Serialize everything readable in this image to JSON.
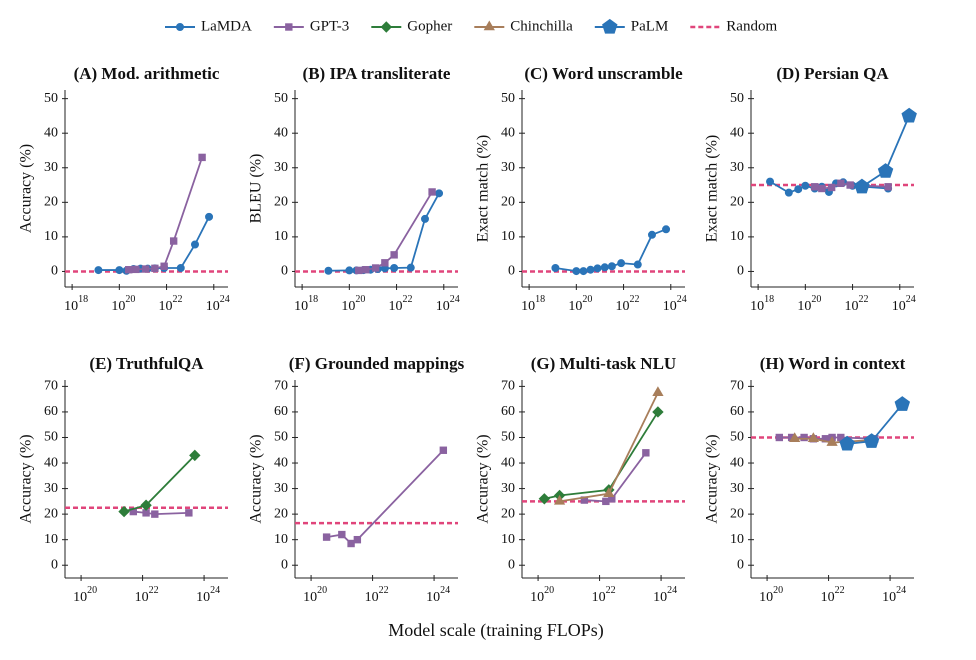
{
  "legend": [
    {
      "name": "LaMDA",
      "color": "#2a74b8",
      "marker": "circle"
    },
    {
      "name": "GPT-3",
      "color": "#8a62a0",
      "marker": "square"
    },
    {
      "name": "Gopher",
      "color": "#2e7d3a",
      "marker": "diamond"
    },
    {
      "name": "Chinchilla",
      "color": "#a87e5b",
      "marker": "triangle"
    },
    {
      "name": "PaLM",
      "color": "#2a74b8",
      "marker": "pentagon"
    },
    {
      "name": "Random",
      "color": "#e0457b",
      "marker": "dashed"
    }
  ],
  "xlabel": "Model scale (training FLOPs)",
  "chart_data": [
    {
      "type": "line",
      "title": "(A) Mod. arithmetic",
      "ylabel": "Accuracy (%)",
      "xscale": "log",
      "xlim": [
        5e+17,
        4e+24
      ],
      "xticks": [
        {
          "value": 1e+18,
          "label": "10^18"
        },
        {
          "value": 1e+20,
          "label": "10^20"
        },
        {
          "value": 1e+22,
          "label": "10^22"
        },
        {
          "value": 1e+24,
          "label": "10^24"
        }
      ],
      "ylim": [
        -4.5,
        52.5
      ],
      "yticks": [
        0,
        10,
        20,
        30,
        40,
        50
      ],
      "random": 0,
      "series": [
        {
          "name": "LaMDA",
          "x": [
            1.3e+19,
            1e+20,
            2e+20,
            4e+20,
            7.9e+20,
            1.6e+21,
            3.2e+21,
            7.9e+21,
            4e+22,
            1.6e+23,
            6.3e+23
          ],
          "values": [
            0.4,
            0.4,
            0.2,
            0.7,
            0.8,
            0.8,
            0.9,
            1.0,
            1.0,
            7.8,
            15.8
          ]
        },
        {
          "name": "GPT-3",
          "x": [
            2.5e+20,
            5e+20,
            1.3e+21,
            3.2e+21,
            7.9e+21,
            2e+22,
            3.2e+23
          ],
          "values": [
            0.5,
            0.6,
            0.7,
            0.9,
            1.5,
            8.8,
            33.0
          ]
        }
      ]
    },
    {
      "type": "line",
      "title": "(B) IPA transliterate",
      "ylabel": "BLEU (%)",
      "xscale": "log",
      "xlim": [
        5e+17,
        4e+24
      ],
      "xticks": [
        {
          "value": 1e+18,
          "label": "10^18"
        },
        {
          "value": 1e+20,
          "label": "10^20"
        },
        {
          "value": 1e+22,
          "label": "10^22"
        },
        {
          "value": 1e+24,
          "label": "10^24"
        }
      ],
      "ylim": [
        -4.5,
        52.5
      ],
      "yticks": [
        0,
        10,
        20,
        30,
        40,
        50
      ],
      "random": 0,
      "series": [
        {
          "name": "LaMDA",
          "x": [
            1.3e+19,
            1e+20,
            2e+20,
            4e+20,
            7.9e+20,
            1.6e+21,
            3.2e+21,
            7.9e+21,
            4e+22,
            1.6e+23,
            6.3e+23
          ],
          "values": [
            0.2,
            0.3,
            0.3,
            0.4,
            0.5,
            0.7,
            0.9,
            1.0,
            1.1,
            15.2,
            22.6
          ]
        },
        {
          "name": "GPT-3",
          "x": [
            2.5e+20,
            5e+20,
            1.3e+21,
            3.2e+21,
            7.9e+21,
            3.2e+23
          ],
          "values": [
            0.3,
            0.5,
            1.0,
            2.5,
            4.8,
            23.0
          ]
        }
      ]
    },
    {
      "type": "line",
      "title": "(C) Word unscramble",
      "ylabel": "Exact match (%)",
      "xscale": "log",
      "xlim": [
        5e+17,
        4e+24
      ],
      "xticks": [
        {
          "value": 1e+18,
          "label": "10^18"
        },
        {
          "value": 1e+20,
          "label": "10^20"
        },
        {
          "value": 1e+22,
          "label": "10^22"
        },
        {
          "value": 1e+24,
          "label": "10^24"
        }
      ],
      "ylim": [
        -4.5,
        52.5
      ],
      "yticks": [
        0,
        10,
        20,
        30,
        40,
        50
      ],
      "random": 0,
      "series": [
        {
          "name": "LaMDA",
          "x": [
            1.3e+19,
            1e+20,
            2e+20,
            4e+20,
            7.9e+20,
            1.6e+21,
            3.2e+21,
            7.9e+21,
            4e+22,
            1.6e+23,
            6.3e+23
          ],
          "values": [
            1.0,
            0.1,
            0.1,
            0.5,
            0.9,
            1.2,
            1.5,
            2.4,
            2.0,
            10.6,
            12.2
          ]
        }
      ]
    },
    {
      "type": "line",
      "title": "(D) Persian QA",
      "ylabel": "Exact match (%)",
      "xscale": "log",
      "xlim": [
        5e+17,
        4e+24
      ],
      "xticks": [
        {
          "value": 1e+18,
          "label": "10^18"
        },
        {
          "value": 1e+20,
          "label": "10^20"
        },
        {
          "value": 1e+22,
          "label": "10^22"
        },
        {
          "value": 1e+24,
          "label": "10^24"
        }
      ],
      "ylim": [
        -4.5,
        52.5
      ],
      "yticks": [
        0,
        10,
        20,
        30,
        40,
        50
      ],
      "random": 25,
      "series": [
        {
          "name": "LaMDA",
          "x": [
            3.2e+18,
            2e+19,
            5e+19,
            1e+20,
            2.5e+20,
            5e+20,
            1e+21,
            2e+21,
            4e+21,
            1e+22,
            3.2e+22,
            3.2e+23
          ],
          "values": [
            26,
            22.8,
            23.8,
            24.8,
            24.0,
            24.5,
            23.0,
            25.5,
            25.8,
            24.8,
            24.5,
            24.0
          ]
        },
        {
          "name": "GPT-3",
          "x": [
            2.5e+20,
            5e+20,
            1.3e+21,
            3.2e+21,
            7.9e+21,
            3.2e+23
          ],
          "values": [
            24.5,
            24.0,
            24.3,
            25.5,
            25.0,
            24.5
          ]
        },
        {
          "name": "PaLM",
          "x": [
            2.5e+22,
            2.5e+23,
            2.5e+24
          ],
          "values": [
            24.5,
            29,
            45
          ]
        }
      ]
    },
    {
      "type": "line",
      "title": "(E) TruthfulQA",
      "ylabel": "Accuracy (%)",
      "xscale": "log",
      "xlim": [
        3e+19,
        6e+24
      ],
      "xticks": [
        {
          "value": 1e+20,
          "label": "10^20"
        },
        {
          "value": 1e+22,
          "label": "10^22"
        },
        {
          "value": 1e+24,
          "label": "10^24"
        }
      ],
      "ylim": [
        -5,
        72.5
      ],
      "yticks": [
        0,
        10,
        20,
        30,
        40,
        50,
        60,
        70
      ],
      "random": 22.5,
      "series": [
        {
          "name": "GPT-3",
          "x": [
            5e+21,
            1.3e+22,
            2.5e+22,
            3.2e+23
          ],
          "values": [
            21,
            20.5,
            20,
            20.5
          ]
        },
        {
          "name": "Gopher",
          "x": [
            2.5e+21,
            1.3e+22,
            5e+23
          ],
          "values": [
            21,
            23.5,
            43
          ]
        }
      ]
    },
    {
      "type": "line",
      "title": "(F) Grounded mappings",
      "ylabel": "Accuracy (%)",
      "xscale": "log",
      "xlim": [
        3e+19,
        6e+24
      ],
      "xticks": [
        {
          "value": 1e+20,
          "label": "10^20"
        },
        {
          "value": 1e+22,
          "label": "10^22"
        },
        {
          "value": 1e+24,
          "label": "10^24"
        }
      ],
      "ylim": [
        -5,
        72.5
      ],
      "yticks": [
        0,
        10,
        20,
        30,
        40,
        50,
        60,
        70
      ],
      "random": 16.5,
      "series": [
        {
          "name": "GPT-3",
          "x": [
            3.2e+20,
            1e+21,
            2e+21,
            3.2e+21,
            2e+24
          ],
          "values": [
            11,
            12,
            8.5,
            10,
            45
          ]
        }
      ]
    },
    {
      "type": "line",
      "title": "(G) Multi-task NLU",
      "ylabel": "Accuracy (%)",
      "xscale": "log",
      "xlim": [
        3e+19,
        6e+24
      ],
      "xticks": [
        {
          "value": 1e+20,
          "label": "10^20"
        },
        {
          "value": 1e+22,
          "label": "10^22"
        },
        {
          "value": 1e+24,
          "label": "10^24"
        }
      ],
      "ylim": [
        -5,
        72.5
      ],
      "yticks": [
        0,
        10,
        20,
        30,
        40,
        50,
        60,
        70
      ],
      "random": 25,
      "series": [
        {
          "name": "GPT-3",
          "x": [
            3.2e+21,
            1.6e+22,
            2.5e+22,
            3.2e+23
          ],
          "values": [
            25.5,
            25,
            26,
            44
          ]
        },
        {
          "name": "Gopher",
          "x": [
            1.6e+20,
            5e+20,
            2e+22,
            7.9e+23
          ],
          "values": [
            26,
            27.3,
            29.5,
            60
          ]
        },
        {
          "name": "Chinchilla",
          "x": [
            5e+20,
            2e+22,
            7.9e+23
          ],
          "values": [
            25,
            28,
            67.5
          ]
        }
      ]
    },
    {
      "type": "line",
      "title": "(H) Word in context",
      "ylabel": "Accuracy (%)",
      "xscale": "log",
      "xlim": [
        3e+19,
        6e+24
      ],
      "xticks": [
        {
          "value": 1e+20,
          "label": "10^20"
        },
        {
          "value": 1e+22,
          "label": "10^22"
        },
        {
          "value": 1e+24,
          "label": "10^24"
        }
      ],
      "ylim": [
        -5,
        72.5
      ],
      "yticks": [
        0,
        10,
        20,
        30,
        40,
        50,
        60,
        70
      ],
      "random": 50,
      "series": [
        {
          "name": "GPT-3",
          "x": [
            2.5e+20,
            6.3e+20,
            1.6e+21,
            3.2e+21,
            7.9e+21,
            1.3e+22,
            2.5e+22,
            3.2e+23
          ],
          "values": [
            50,
            50,
            50,
            49.5,
            49.5,
            50,
            50,
            49.5
          ]
        },
        {
          "name": "Chinchilla",
          "x": [
            7.9e+20,
            3.2e+21,
            1.3e+22,
            2.5e+23
          ],
          "values": [
            49.5,
            49.5,
            48,
            49
          ]
        },
        {
          "name": "PaLM",
          "x": [
            4e+22,
            2.5e+23,
            2.5e+24
          ],
          "values": [
            47.5,
            48.5,
            63
          ]
        }
      ]
    }
  ]
}
